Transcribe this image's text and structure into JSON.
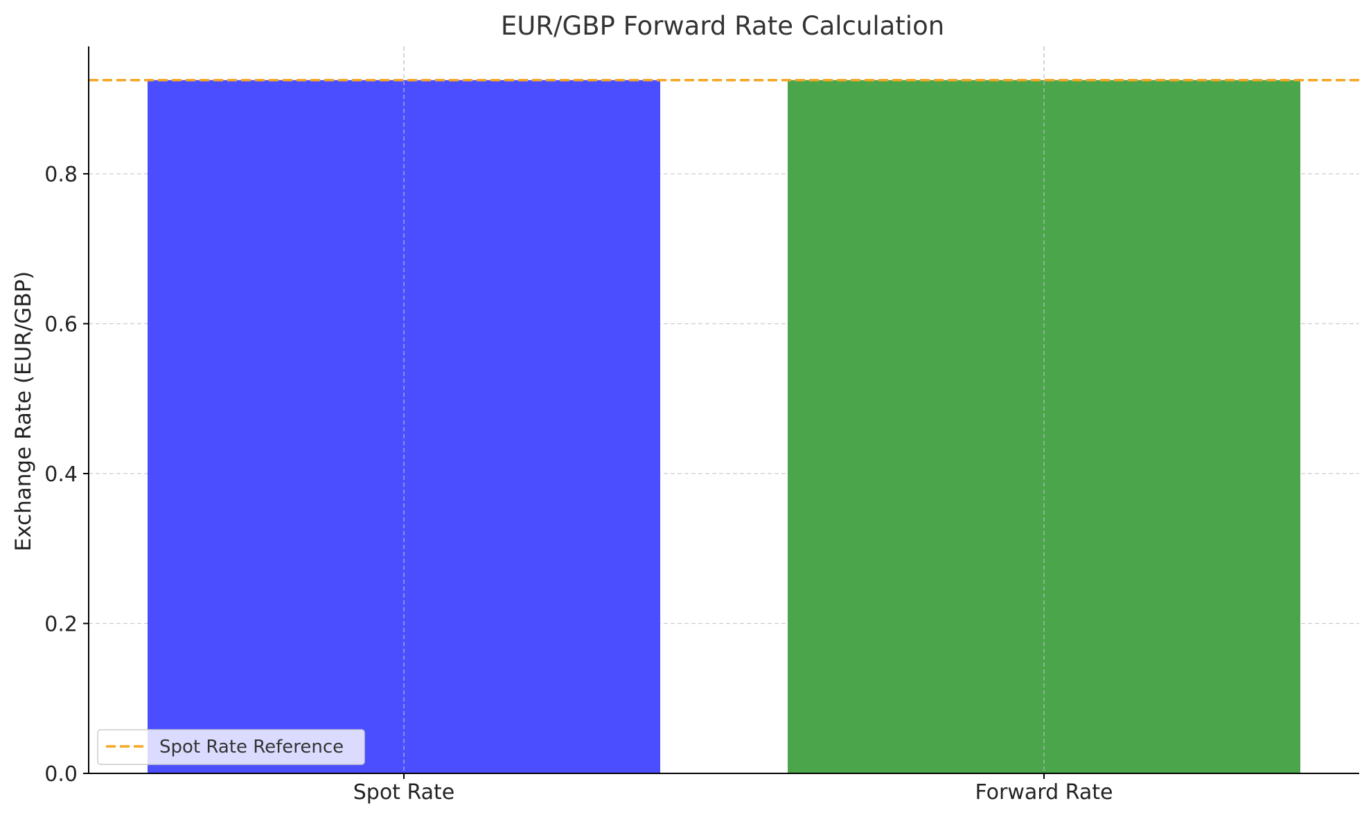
{
  "chart_data": {
    "type": "bar",
    "title": "EUR/GBP Forward Rate Calculation",
    "xlabel": "",
    "ylabel": "Exchange Rate (EUR/GBP)",
    "categories": [
      "Spot Rate",
      "Forward Rate"
    ],
    "values": [
      0.925,
      0.925
    ],
    "bar_colors": [
      "#4b4eff",
      "#4ba64b"
    ],
    "ylim": [
      0,
      0.97
    ],
    "yticks": [
      0.0,
      0.2,
      0.4,
      0.6,
      0.8
    ],
    "ytick_labels": [
      "0.0",
      "0.2",
      "0.4",
      "0.6",
      "0.8"
    ],
    "reference_line": {
      "value": 0.925,
      "label": "Spot Rate Reference",
      "color": "#f5a623",
      "style": "dashed"
    },
    "grid": true,
    "legend_position": "lower-left"
  }
}
